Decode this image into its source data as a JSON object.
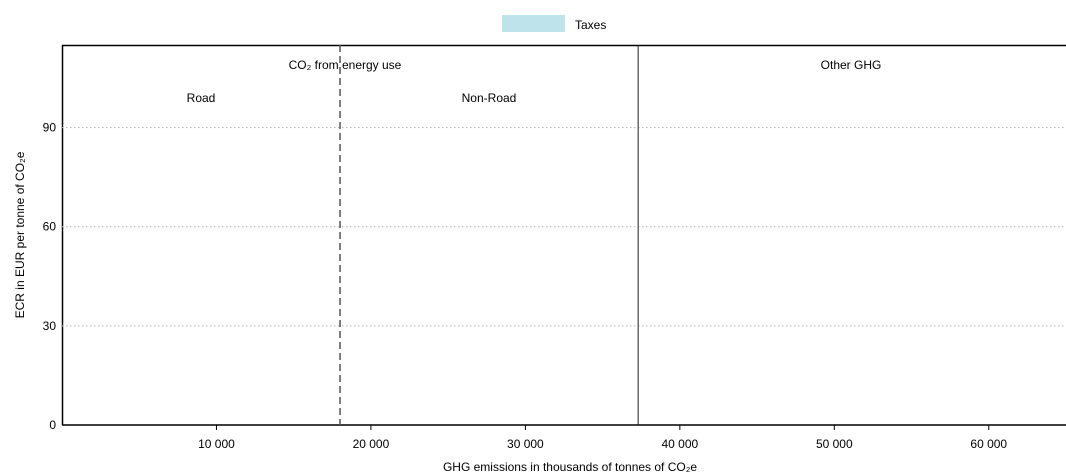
{
  "chart_data": {
    "type": "bar",
    "series": [
      {
        "name": "Taxes",
        "color": "#bfe3ea",
        "values": []
      }
    ],
    "xlabel": "GHG emissions in thousands of tonnes of CO₂e",
    "ylabel": "ECR in EUR per tonne of CO₂e",
    "xlim": [
      0,
      65000
    ],
    "ylim": [
      0,
      115
    ],
    "x_ticks": [
      10000,
      20000,
      30000,
      40000,
      50000,
      60000
    ],
    "x_tick_labels": [
      "10 000",
      "20 000",
      "30 000",
      "40 000",
      "50 000",
      "60 000"
    ],
    "y_ticks": [
      0,
      30,
      60,
      90
    ],
    "y_tick_labels": [
      "0",
      "30",
      "60",
      "90"
    ],
    "grid": {
      "horizontal": true,
      "style": "dotted"
    },
    "legend": {
      "position": "top-center"
    },
    "dividers": [
      {
        "x": 18000,
        "style": "dashed"
      },
      {
        "x": 37300,
        "style": "solid"
      }
    ],
    "annotations": {
      "co2_energy": "CO₂ from energy use",
      "other_ghg": "Other GHG",
      "road": "Road",
      "non_road": "Non-Road"
    }
  }
}
